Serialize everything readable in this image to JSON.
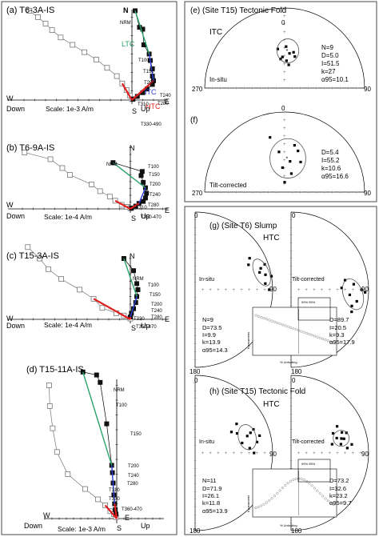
{
  "colors": {
    "ltc": "#2aa36b",
    "itc": "#2a3fd8",
    "htc": "#e01f1f",
    "box": "#4a4a4a",
    "open": "#777777"
  },
  "zij": [
    {
      "title": "(a) T6-3A-IS",
      "scale": "Scale: 1e-3 A/m",
      "dir": {
        "N": "N",
        "W": "W",
        "E": "E",
        "S": "S",
        "Down": "Down",
        "Up": "Up"
      },
      "labels": {
        "NRM": "NRM",
        "LTC": "LTC",
        "ITC": "ITC",
        "HTC": "HTC",
        "T100": "T100",
        "T150": "T150",
        "T200": "T200",
        "T240": "T240",
        "T280": "T280",
        "T310": "T310",
        "T330-490": "T330-490"
      },
      "chart_data": {
        "type": "scatter",
        "series": [
          {
            "name": "horizontal",
            "points": [
              [
                0.3,
                9.7
              ],
              [
                0.7,
                7.9
              ],
              [
                1.0,
                7.7
              ],
              [
                1.1,
                6.0
              ],
              [
                1.6,
                5.0
              ],
              [
                1.7,
                4.3
              ],
              [
                1.9,
                3.4
              ],
              [
                1.9,
                2.6
              ],
              [
                2.0,
                2.1
              ],
              [
                1.9,
                1.7
              ],
              [
                1.4,
                1.2
              ],
              [
                1.0,
                0.8
              ],
              [
                0.5,
                0.4
              ],
              [
                0.1,
                0.1
              ]
            ]
          },
          {
            "name": "vertical",
            "points": [
              [
                -9.5,
                9.7
              ],
              [
                -8.7,
                9.0
              ],
              [
                -8.0,
                8.3
              ],
              [
                -7.4,
                7.6
              ],
              [
                -6.6,
                6.8
              ],
              [
                -5.5,
                6.0
              ],
              [
                -4.4,
                5.2
              ],
              [
                -3.3,
                4.4
              ],
              [
                -2.3,
                3.5
              ],
              [
                -1.4,
                2.6
              ],
              [
                -0.9,
                1.8
              ],
              [
                -0.5,
                1.1
              ],
              [
                -0.2,
                0.5
              ],
              [
                0.0,
                0.1
              ]
            ]
          }
        ]
      }
    },
    {
      "title": "(b) T6-9A-IS",
      "scale": "Scale: 1e-4 A/m",
      "dir": {
        "N": "N",
        "W": "W",
        "E": "E",
        "S": "S",
        "Down": "Down",
        "Up": "Up"
      },
      "labels": {
        "NRM": "NRM",
        "T100": "T100",
        "T150": "T150",
        "T200": "T200",
        "T240": "T240",
        "T280": "T280",
        "T310": "T310",
        "T350-470": "T350-470"
      },
      "chart_data": {
        "type": "scatter",
        "series": [
          {
            "name": "horizontal",
            "points": [
              [
                -1.6,
                6.8
              ],
              [
                1.1,
                5.5
              ],
              [
                1.0,
                4.9
              ],
              [
                1.2,
                3.9
              ],
              [
                1.4,
                3.1
              ],
              [
                1.5,
                2.3
              ],
              [
                1.4,
                1.6
              ],
              [
                1.2,
                1.1
              ],
              [
                0.8,
                0.8
              ],
              [
                0.5,
                0.4
              ],
              [
                0.1,
                0.1
              ]
            ]
          },
          {
            "name": "vertical",
            "points": [
              [
                -9.8,
                8.3
              ],
              [
                -7.4,
                7.3
              ],
              [
                -6.3,
                6.0
              ],
              [
                -5.6,
                5.0
              ],
              [
                -3.6,
                3.6
              ],
              [
                -2.8,
                2.6
              ],
              [
                -1.9,
                1.8
              ],
              [
                -1.4,
                1.2
              ],
              [
                -0.8,
                0.6
              ],
              [
                -0.3,
                0.3
              ],
              [
                0.0,
                0.1
              ]
            ]
          }
        ]
      }
    },
    {
      "title": "(c) T15-3A-IS",
      "scale": "Scale: 1e-4 A/m",
      "dir": {
        "N": "N",
        "W": "W",
        "E": "E",
        "S": "S",
        "Down": "Down",
        "Up": "Up"
      },
      "labels": {
        "NRM": "NRM",
        "T100": "T100",
        "T150": "T150",
        "T200": "T200",
        "T240": "T240",
        "T280": "T280",
        "T330": "T330",
        "T350-470": "T350-470"
      },
      "chart_data": {
        "type": "scatter",
        "series": [
          {
            "name": "horizontal",
            "points": [
              [
                -0.6,
                8.0
              ],
              [
                0.3,
                6.4
              ],
              [
                0.6,
                4.7
              ],
              [
                0.7,
                3.9
              ],
              [
                0.6,
                3.0
              ],
              [
                0.5,
                2.2
              ],
              [
                0.3,
                1.4
              ],
              [
                0.1,
                0.8
              ],
              [
                0.0,
                0.3
              ]
            ]
          },
          {
            "name": "vertical",
            "points": [
              [
                -9.5,
                9.5
              ],
              [
                -8.4,
                8.0
              ],
              [
                -7.6,
                6.6
              ],
              [
                -6.4,
                5.3
              ],
              [
                -4.7,
                3.9
              ],
              [
                -3.4,
                2.7
              ],
              [
                -2.6,
                1.5
              ],
              [
                -1.3,
                0.8
              ],
              [
                -0.6,
                0.5
              ],
              [
                0.0,
                0.1
              ]
            ]
          }
        ]
      }
    },
    {
      "title": "(d) T15-11A-IS",
      "scale": "Scale: 1e-3 A/m",
      "dir": {
        "W": "W",
        "E": "E",
        "S": "S",
        "Down": "Down",
        "Up": "Up"
      },
      "labels": {
        "NRM": "NRM",
        "T100": "T100",
        "T150": "T150",
        "T200": "T200",
        "T240": "T240",
        "T280": "T280",
        "T310": "T310",
        "T330": "T330",
        "T360-470": "T360-470"
      },
      "chart_data": {
        "type": "scatter",
        "series": [
          {
            "name": "horizontal",
            "points": [
              [
                -4.7,
                9.9
              ],
              [
                -2.8,
                9.7
              ],
              [
                -2.3,
                9.2
              ],
              [
                -1.4,
                6.4
              ],
              [
                -0.7,
                3.6
              ],
              [
                -0.6,
                3.1
              ],
              [
                -0.5,
                2.4
              ],
              [
                -0.4,
                1.6
              ],
              [
                -0.3,
                1.0
              ],
              [
                -0.2,
                0.6
              ],
              [
                -0.1,
                0.3
              ]
            ]
          },
          {
            "name": "vertical",
            "points": [
              [
                -9.4,
                9.0
              ],
              [
                -9.3,
                7.6
              ],
              [
                -8.9,
                6.1
              ],
              [
                -8.3,
                4.5
              ],
              [
                -6.8,
                3.0
              ],
              [
                -4.4,
                2.0
              ],
              [
                -2.6,
                1.3
              ],
              [
                -1.6,
                0.9
              ],
              [
                -0.9,
                0.5
              ],
              [
                -0.4,
                0.3
              ],
              [
                -0.1,
                0.1
              ]
            ]
          }
        ]
      }
    }
  ],
  "stereo": [
    {
      "title": "(e) (Site T15) Tectonic Fold",
      "code": "ITC",
      "mode": "In-situ",
      "zero": "0",
      "ninety": "90",
      "twoseventy": "270",
      "stats": [
        "N=9",
        "D=5.0",
        "I=51.5",
        "k=27",
        "α95=10.1"
      ],
      "chart_data": {
        "type": "scatter",
        "points": [
          [
            356,
            58
          ],
          [
            8,
            54
          ],
          [
            14,
            52
          ],
          [
            2,
            47
          ],
          [
            350,
            49
          ],
          [
            18,
            56
          ],
          [
            4,
            62
          ],
          [
            10,
            66
          ],
          [
            352,
            60
          ]
        ],
        "mean": [
          5.0,
          51.5
        ],
        "a95": 10.1
      }
    },
    {
      "title": "(f)",
      "mode": "Tilt-corrected",
      "zero": "0",
      "ninety": "90",
      "twoseventy": "270",
      "stats": [
        "D=5.4",
        "I=55.2",
        "k=10.6",
        "α95=16.6"
      ],
      "chart_data": {
        "type": "scatter",
        "points": [
          [
            345,
            30
          ],
          [
            355,
            65
          ],
          [
            10,
            58
          ],
          [
            18,
            45
          ],
          [
            20,
            70
          ],
          [
            12,
            40
          ],
          [
            352,
            48
          ],
          [
            28,
            55
          ],
          [
            0,
            80
          ]
        ],
        "mean": [
          5.4,
          55.2
        ],
        "a95": 16.6
      }
    }
  ],
  "slump": {
    "title": "(g) (Site T6) Slump",
    "code": "HTC",
    "left_mode": "In-situ",
    "right_mode": "Tilt-corrected",
    "zero": "0",
    "ninety": "90",
    "oneeighty": "180",
    "left_stats": [
      "N=9",
      "D=73.5",
      "I=9.9",
      "k=13.9",
      "α95=14.3"
    ],
    "right_stats": [
      "D=89.7",
      "I=20.5",
      "k=9.3",
      "α95=17.9"
    ],
    "inset": {
      "ylabel": "k parameter",
      "xlabel": "% Unfolding",
      "peak": "99% 95%",
      "ticks": [
        "0",
        "10",
        "20",
        "30",
        "40",
        "50",
        "60",
        "70",
        "80",
        "90",
        "100"
      ]
    },
    "chart_data": {
      "type": "scatter",
      "left_points": [
        [
          60,
          20
        ],
        [
          75,
          15
        ],
        [
          70,
          5
        ],
        [
          80,
          0
        ],
        [
          65,
          25
        ],
        [
          85,
          10
        ],
        [
          90,
          -5
        ],
        [
          72,
          12
        ],
        [
          78,
          8
        ]
      ],
      "right_points": [
        [
          95,
          25
        ],
        [
          85,
          20
        ],
        [
          100,
          15
        ],
        [
          80,
          30
        ],
        [
          90,
          10
        ],
        [
          105,
          20
        ],
        [
          88,
          35
        ],
        [
          92,
          5
        ],
        [
          110,
          18
        ]
      ]
    }
  },
  "fold": {
    "title": "(h) (Site T15) Tectonic Fold",
    "code": "HTC",
    "left_mode": "In-situ",
    "right_mode": "Tilt-corrected",
    "zero": "0",
    "ninety": "90",
    "oneeighty": "180",
    "left_stats": [
      "N=11",
      "D=71.9",
      "I=26.1",
      "k=11.8",
      "α95=13.9"
    ],
    "right_stats": [
      "D=73.2",
      "I=32.6",
      "k=23.2",
      "α95=9.7"
    ],
    "inset": {
      "ylabel": "k parameter",
      "xlabel": "% Unfolding",
      "peak": "99% 95%",
      "ticks": [
        "0",
        "10",
        "20",
        "30",
        "40",
        "50",
        "60",
        "70",
        "80",
        "90",
        "100"
      ]
    },
    "chart_data": {
      "type": "scatter",
      "left_points": [
        [
          55,
          35
        ],
        [
          70,
          25
        ],
        [
          80,
          20
        ],
        [
          65,
          40
        ],
        [
          85,
          30
        ],
        [
          75,
          15
        ],
        [
          60,
          45
        ],
        [
          90,
          25
        ],
        [
          72,
          30
        ],
        [
          68,
          20
        ],
        [
          78,
          38
        ]
      ],
      "right_points": [
        [
          65,
          40
        ],
        [
          75,
          30
        ],
        [
          80,
          35
        ],
        [
          70,
          25
        ],
        [
          85,
          28
        ],
        [
          60,
          32
        ],
        [
          78,
          45
        ],
        [
          72,
          38
        ],
        [
          68,
          30
        ],
        [
          82,
          22
        ],
        [
          74,
          33
        ]
      ]
    }
  }
}
